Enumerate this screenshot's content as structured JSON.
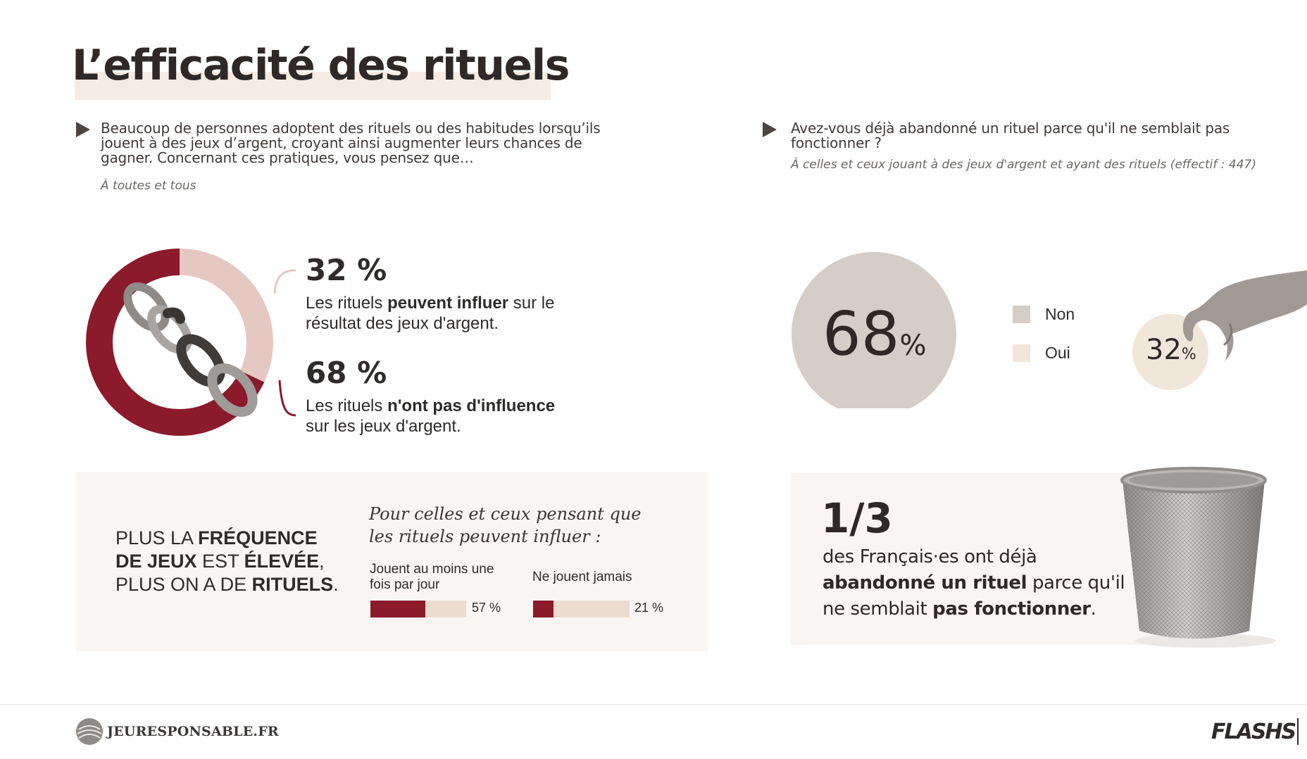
{
  "title": "L’efficacité des rituels",
  "left_question": {
    "lines": [
      "Beaucoup de personnes adoptent des rituels ou des habitudes lorsqu’ils",
      "jouent à des jeux d’argent, croyant ainsi augmenter leurs chances de",
      "gagner. Concernant ces pratiques, vous pensez que…"
    ],
    "base": "À toutes et tous"
  },
  "right_question": {
    "lines": [
      "Avez-vous déjà abandonné un rituel parce qu'il ne semblait pas",
      "fonctionner ?"
    ],
    "base": "À celles et ceux jouant à des jeux d'argent et ayant des rituels (effectif : 447)"
  },
  "donut_stats": [
    {
      "pct": "32 %",
      "line1_pre": "Les rituels ",
      "line1_bold": "peuvent influer",
      "line1_post": " sur le",
      "line2": "résultat des jeux d'argent."
    },
    {
      "pct": "68 %",
      "line1_pre": "Les rituels ",
      "line1_bold": "n'ont pas d'influence",
      "line1_post": "",
      "line2": "sur les jeux d'argent."
    }
  ],
  "frequency": {
    "line1_pre": "PLUS LA ",
    "line1_bold": "FRÉQUENCE",
    "line2_bold1": "DE JEUX",
    "line2_mid": " EST ",
    "line2_bold2": "ÉLEVÉE",
    "line2_post": ",",
    "line3_pre": "PLUS ON A DE ",
    "line3_bold": "RITUELS",
    "line3_post": ".",
    "caption": "Pour celles et ceux pensant que les rituels peuvent influer :"
  },
  "circles": {
    "big_number": "68",
    "big_unit": "%",
    "small_number": "32",
    "small_unit": "%",
    "legend": [
      {
        "label": "Non",
        "color": "#d5cdc7"
      },
      {
        "label": "Oui",
        "color": "#f0e6da"
      }
    ]
  },
  "third_card": {
    "fraction": "1/3",
    "line1": "des Français·es ont déjà",
    "line2_bold": "abandonné un rituel",
    "line2_post": " parce qu'il",
    "line3_pre": "ne semblait ",
    "line3_bold": "pas fonctionner",
    "line3_post": "."
  },
  "footer": {
    "brand": "JEURESPONSABLE.FR",
    "flash": "FLASHS"
  },
  "chart_data": [
    {
      "type": "pie",
      "values": [
        32,
        68
      ],
      "labels": [
        "32 %",
        "68 %"
      ],
      "colors": [
        "#e6c8c2",
        "#8b1a2b"
      ]
    },
    {
      "type": "bar",
      "categories": [
        "Jouent au moins une fois par jour",
        "Ne jouent jamais"
      ],
      "values": [
        57,
        21
      ],
      "value_labels": [
        "57 %",
        "21 %"
      ],
      "ylim": [
        0,
        100
      ],
      "colors": [
        "#8b1a2b",
        "#ecdccf"
      ]
    },
    {
      "type": "pie",
      "categories": [
        "Non",
        "Oui"
      ],
      "values": [
        68,
        32
      ],
      "colors": [
        "#d5cdc7",
        "#f0e6da"
      ]
    }
  ]
}
